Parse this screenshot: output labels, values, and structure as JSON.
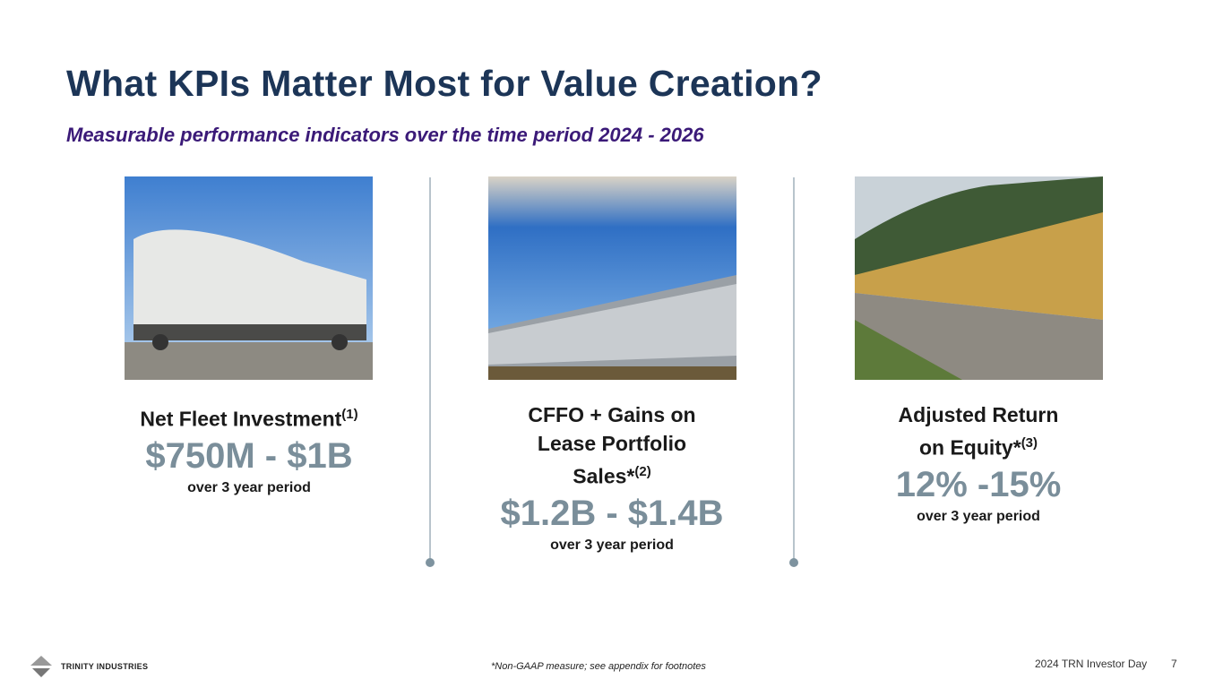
{
  "title": "What KPIs Matter Most for Value Creation?",
  "subtitle": "Measurable performance indicators over the time period 2024 - 2026",
  "kpis": [
    {
      "title": "Net Fleet Investment",
      "footnote": "(1)",
      "value": "$750M - $1B",
      "period": "over 3 year period",
      "image": "covered hopper railcar photo"
    },
    {
      "title": "CFFO + Gains on Lease Portfolio Sales*",
      "footnote": "(2)",
      "value": "$1.2B - $1.4B",
      "period": "over 3 year period",
      "image": "tank railcars photo"
    },
    {
      "title": "Adjusted Return on Equity*",
      "footnote": "(3)",
      "value": "12% -15%",
      "period": "over 3 year period",
      "image": "autorack railcars photo"
    }
  ],
  "footer": {
    "logo": "TRINITY INDUSTRIES",
    "note": "*Non-GAAP measure; see appendix for footnotes",
    "event": "2024 TRN Investor Day",
    "page": "7"
  },
  "colors": {
    "title": "#1c3557",
    "subtitle": "#3b1a78",
    "value": "#7a8e9a"
  }
}
